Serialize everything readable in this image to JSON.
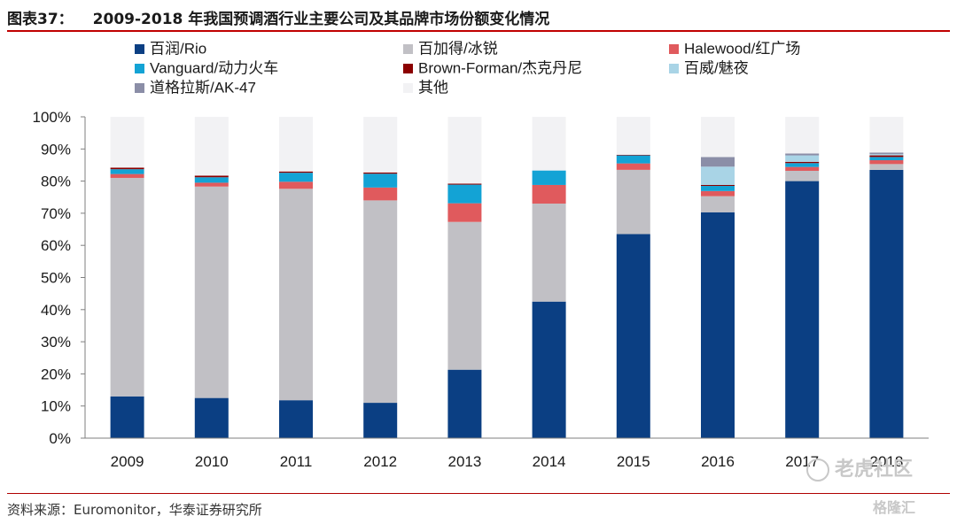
{
  "header": {
    "figure_label": "图表37：",
    "title": "2009-2018 年我国预调酒行业主要公司及其品牌市场份额变化情况"
  },
  "chart_data": {
    "type": "bar",
    "stacked": true,
    "categories": [
      "2009",
      "2010",
      "2011",
      "2012",
      "2013",
      "2014",
      "2015",
      "2016",
      "2017",
      "2018"
    ],
    "ylim": [
      0,
      100
    ],
    "yticks": [
      0,
      10,
      20,
      30,
      40,
      50,
      60,
      70,
      80,
      90,
      100
    ],
    "ytick_labels": [
      "0%",
      "10%",
      "20%",
      "30%",
      "40%",
      "50%",
      "60%",
      "70%",
      "80%",
      "90%",
      "100%"
    ],
    "legend_position": "top",
    "series": [
      {
        "name": "百润/Rio",
        "color": "#0b3f83",
        "values": [
          13.0,
          12.5,
          11.8,
          11.0,
          21.3,
          42.5,
          63.5,
          70.3,
          80.0,
          83.5
        ]
      },
      {
        "name": "百加得/冰锐",
        "color": "#c1c0c5",
        "values": [
          68.0,
          65.8,
          65.8,
          63.0,
          46.0,
          30.5,
          20.0,
          5.0,
          3.2,
          1.8
        ]
      },
      {
        "name": "Halewood/红广场",
        "color": "#e05a5d",
        "values": [
          1.2,
          1.2,
          2.2,
          4.0,
          5.8,
          5.8,
          2.0,
          1.6,
          1.2,
          1.2
        ]
      },
      {
        "name": "Vanguard/动力火车",
        "color": "#13a3d5",
        "values": [
          1.5,
          1.7,
          2.8,
          4.3,
          5.8,
          4.5,
          2.5,
          1.6,
          1.2,
          1.0
        ]
      },
      {
        "name": "Brown-Forman/杰克丹尼",
        "color": "#8b0000",
        "values": [
          0.5,
          0.5,
          0.4,
          0.4,
          0.3,
          0.0,
          0.2,
          0.3,
          0.4,
          0.5
        ]
      },
      {
        "name": "百威/魅夜",
        "color": "#a9d4e6",
        "values": [
          0.0,
          0.0,
          0.0,
          0.0,
          0.0,
          0.0,
          0.0,
          5.7,
          2.0,
          0.4
        ]
      },
      {
        "name": "道格拉斯/AK-47",
        "color": "#8b8ea7",
        "values": [
          0.0,
          0.0,
          0.0,
          0.0,
          0.0,
          0.0,
          0.0,
          3.0,
          0.6,
          0.5
        ]
      },
      {
        "name": "其他",
        "color": "#f2f2f4",
        "values": [
          15.8,
          18.3,
          17.0,
          17.3,
          20.8,
          16.7,
          11.8,
          12.5,
          11.4,
          11.1
        ]
      }
    ]
  },
  "footer": {
    "source": "资料来源：Euromonitor，华泰证券研究所"
  },
  "watermarks": {
    "community": "老虎社区",
    "brand": "格隆汇"
  }
}
